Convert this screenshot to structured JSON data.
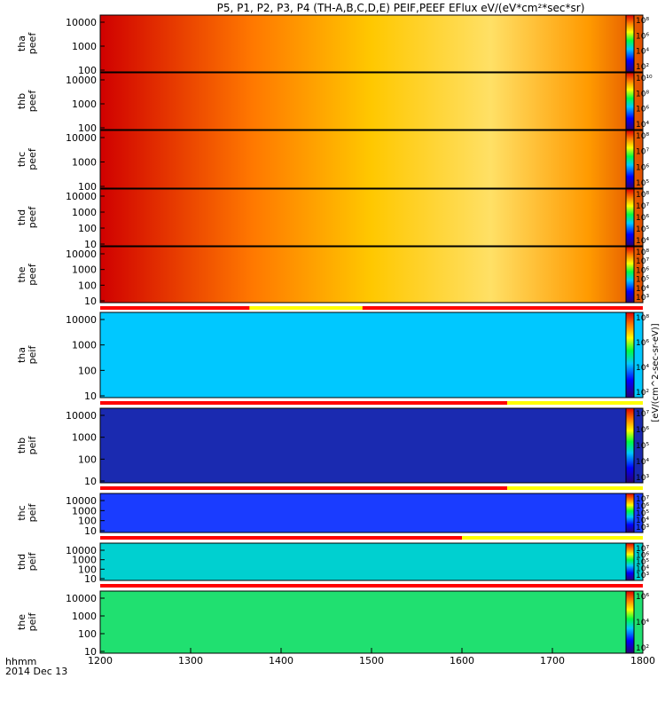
{
  "chart_data": {
    "type": "heatmap",
    "title": "P5, P1, P2, P3, P4 (TH-A,B,C,D,E) PEIF,PEEF EFlux eV/(eV*cm²*sec*sr)",
    "x_axis": {
      "range": [
        1200,
        1800
      ],
      "ticks": [
        1200,
        1300,
        1400,
        1500,
        1600,
        1700,
        1800
      ],
      "label_line1": "hhmm",
      "label_line2": "2014 Dec 13"
    },
    "colorbar_label": "[eV/(cm^2-sec-sr-eV)]",
    "panels": [
      {
        "probe": "tha",
        "product": "peef",
        "yticks": [
          "10000",
          "1000",
          "100"
        ],
        "cbar_ticks": [
          "10⁸",
          "10⁶",
          "10⁴",
          "10²"
        ],
        "flag": null
      },
      {
        "probe": "thb",
        "product": "peef",
        "yticks": [
          "10000",
          "1000",
          "100"
        ],
        "cbar_ticks": [
          "10¹⁰",
          "10⁸",
          "10⁶",
          "10⁴"
        ],
        "flag": null
      },
      {
        "probe": "thc",
        "product": "peef",
        "yticks": [
          "10000",
          "1000",
          "100"
        ],
        "cbar_ticks": [
          "10⁸",
          "10⁷",
          "10⁶",
          "10⁵"
        ],
        "flag": null
      },
      {
        "probe": "thd",
        "product": "peef",
        "yticks": [
          "10000",
          "1000",
          "100",
          "10"
        ],
        "cbar_ticks": [
          "10⁸",
          "10⁷",
          "10⁶",
          "10⁵",
          "10⁴"
        ],
        "flag": null
      },
      {
        "probe": "the",
        "product": "peef",
        "yticks": [
          "10000",
          "1000",
          "100",
          "10"
        ],
        "cbar_ticks": [
          "10⁸",
          "10⁷",
          "10⁶",
          "10⁵",
          "10⁴",
          "10³"
        ],
        "flag": {
          "red_until": 1365,
          "yellow_from": 1365,
          "red_from": 1490
        }
      },
      {
        "probe": "tha",
        "product": "peif",
        "yticks": [
          "10000",
          "1000",
          "100",
          "10"
        ],
        "cbar_ticks": [
          "10⁸",
          "10⁶",
          "10⁴",
          "10²"
        ],
        "flag": {
          "red_until": 1650
        }
      },
      {
        "probe": "thb",
        "product": "peif",
        "yticks": [
          "10000",
          "1000",
          "100",
          "10"
        ],
        "cbar_ticks": [
          "10⁷",
          "10⁶",
          "10⁵",
          "10⁴",
          "10³"
        ],
        "flag": {
          "red_until": 1650
        }
      },
      {
        "probe": "thc",
        "product": "peif",
        "yticks": [
          "10000",
          "1000",
          "100",
          "10"
        ],
        "cbar_ticks": [
          "10⁷",
          "10⁶",
          "10⁵",
          "10⁴",
          "10³"
        ],
        "flag": {
          "red_until": 1600
        }
      },
      {
        "probe": "thd",
        "product": "peif",
        "yticks": [
          "10000",
          "1000",
          "100",
          "10"
        ],
        "cbar_ticks": [
          "10⁷",
          "10⁶",
          "10⁵",
          "10⁴",
          "10³"
        ],
        "flag": {
          "red_until": 1800
        }
      },
      {
        "probe": "the",
        "product": "peif",
        "yticks": [
          "10000",
          "1000",
          "100",
          "10"
        ],
        "cbar_ticks": [
          "10⁶",
          "10⁴",
          "10²"
        ],
        "flag": null
      }
    ]
  }
}
